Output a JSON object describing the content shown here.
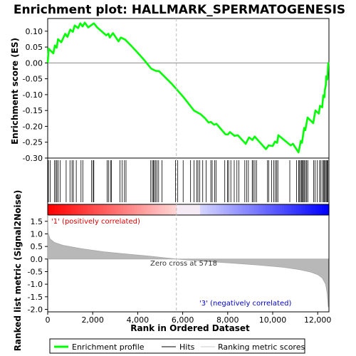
{
  "chart_data": {
    "type": "line",
    "title": "Enrichment plot: HALLMARK_SPERMATOGENESIS",
    "x_label": "Rank in Ordered Dataset",
    "x_range": [
      0,
      12500
    ],
    "x_ticks": [
      0,
      2000,
      4000,
      6000,
      8000,
      10000,
      12000
    ],
    "x_tick_labels": [
      "0",
      "2,000",
      "4,000",
      "6,000",
      "8,000",
      "10,000",
      "12,000"
    ],
    "top_panel": {
      "y_label": "Enrichment score (ES)",
      "y_range": [
        -0.3,
        0.14
      ],
      "y_ticks": [
        0.1,
        0.05,
        0.0,
        -0.05,
        -0.1,
        -0.15,
        -0.2,
        -0.25,
        -0.3
      ],
      "y_tick_labels": [
        "0.10",
        "0.05",
        "0.00",
        "-0.05",
        "-0.10",
        "-0.15",
        "-0.20",
        "-0.25",
        "-0.30"
      ],
      "series_name": "Enrichment profile",
      "color": "#00ff00",
      "points": [
        [
          0,
          0.0
        ],
        [
          40,
          0.045
        ],
        [
          250,
          0.03
        ],
        [
          320,
          0.055
        ],
        [
          400,
          0.048
        ],
        [
          460,
          0.075
        ],
        [
          600,
          0.065
        ],
        [
          780,
          0.092
        ],
        [
          880,
          0.082
        ],
        [
          1000,
          0.105
        ],
        [
          1120,
          0.098
        ],
        [
          1200,
          0.118
        ],
        [
          1350,
          0.11
        ],
        [
          1450,
          0.125
        ],
        [
          1550,
          0.115
        ],
        [
          1650,
          0.127
        ],
        [
          1800,
          0.112
        ],
        [
          2050,
          0.125
        ],
        [
          2200,
          0.112
        ],
        [
          2600,
          0.087
        ],
        [
          2700,
          0.092
        ],
        [
          2760,
          0.08
        ],
        [
          2900,
          0.094
        ],
        [
          3150,
          0.068
        ],
        [
          3250,
          0.08
        ],
        [
          3450,
          0.073
        ],
        [
          3700,
          0.055
        ],
        [
          4000,
          0.032
        ],
        [
          4300,
          0.008
        ],
        [
          4600,
          -0.018
        ],
        [
          4800,
          -0.025
        ],
        [
          4950,
          -0.026
        ],
        [
          5500,
          -0.065
        ],
        [
          6000,
          -0.105
        ],
        [
          6500,
          -0.15
        ],
        [
          6800,
          -0.162
        ],
        [
          7000,
          -0.175
        ],
        [
          7150,
          -0.188
        ],
        [
          7250,
          -0.186
        ],
        [
          7400,
          -0.195
        ],
        [
          7500,
          -0.192
        ],
        [
          7900,
          -0.225
        ],
        [
          8000,
          -0.226
        ],
        [
          8100,
          -0.218
        ],
        [
          8300,
          -0.23
        ],
        [
          8450,
          -0.228
        ],
        [
          8800,
          -0.255
        ],
        [
          8950,
          -0.235
        ],
        [
          9100,
          -0.243
        ],
        [
          9200,
          -0.232
        ],
        [
          9700,
          -0.272
        ],
        [
          9820,
          -0.26
        ],
        [
          10000,
          -0.262
        ],
        [
          10100,
          -0.248
        ],
        [
          10200,
          -0.252
        ],
        [
          10250,
          -0.228
        ],
        [
          10800,
          -0.26
        ],
        [
          10900,
          -0.255
        ],
        [
          11150,
          -0.282
        ],
        [
          11250,
          -0.246
        ],
        [
          11300,
          -0.252
        ],
        [
          11400,
          -0.205
        ],
        [
          11450,
          -0.212
        ],
        [
          11550,
          -0.172
        ],
        [
          11800,
          -0.19
        ],
        [
          11900,
          -0.15
        ],
        [
          12050,
          -0.16
        ],
        [
          12100,
          -0.135
        ],
        [
          12200,
          -0.14
        ],
        [
          12250,
          -0.102
        ],
        [
          12300,
          -0.108
        ],
        [
          12320,
          -0.085
        ],
        [
          12360,
          -0.07
        ],
        [
          12380,
          -0.042
        ],
        [
          12430,
          -0.052
        ],
        [
          12470,
          0.002
        ]
      ]
    },
    "hits": [
      30,
      110,
      300,
      360,
      410,
      470,
      560,
      820,
      990,
      1080,
      1140,
      1270,
      1480,
      1560,
      1950,
      2020,
      2050,
      2640,
      2700,
      2790,
      2830,
      3210,
      3310,
      3410,
      3480,
      4580,
      4650,
      4700,
      4740,
      4800,
      4860,
      4930,
      5080,
      5680,
      5780,
      6020,
      6350,
      6500,
      6620,
      6680,
      6760,
      6890,
      7040,
      7250,
      7310,
      7420,
      7480,
      7870,
      7990,
      8040,
      8140,
      8290,
      8410,
      8500,
      8760,
      8840,
      8920,
      9090,
      9140,
      9210,
      9280,
      9770,
      9820,
      9950,
      10050,
      10120,
      10180,
      10230,
      10760,
      11060,
      11150,
      11190,
      11250,
      11290,
      11330,
      11360,
      11410,
      11460,
      11510,
      11560,
      11820,
      11880,
      11980,
      12080,
      12140,
      12210,
      12260,
      12300,
      12340,
      12380,
      12420,
      12450
    ],
    "heatmap_label_pos": "'1' (positively correlated)",
    "heatmap_label_neg": "'3' (negatively correlated)",
    "bottom_panel": {
      "y_label": "Ranked list metric (Signal2Noise)",
      "y_range": [
        -2.1,
        1.75
      ],
      "y_ticks": [
        1.5,
        1.0,
        0.5,
        0.0,
        -0.5,
        -1.0,
        -1.5,
        -2.0
      ],
      "y_tick_labels": [
        "1.5",
        "1.0",
        "0.5",
        "0.0",
        "-0.5",
        "-1.0",
        "-1.5",
        "-2.0"
      ],
      "metric_points": [
        [
          0,
          1.75
        ],
        [
          20,
          1.05
        ],
        [
          100,
          0.8
        ],
        [
          300,
          0.66
        ],
        [
          700,
          0.54
        ],
        [
          1500,
          0.41
        ],
        [
          2500,
          0.29
        ],
        [
          3500,
          0.2
        ],
        [
          4500,
          0.12
        ],
        [
          5300,
          0.04
        ],
        [
          5718,
          0.0
        ],
        [
          6500,
          -0.06
        ],
        [
          7500,
          -0.12
        ],
        [
          8500,
          -0.18
        ],
        [
          9500,
          -0.25
        ],
        [
          10500,
          -0.33
        ],
        [
          11200,
          -0.42
        ],
        [
          11700,
          -0.52
        ],
        [
          12000,
          -0.62
        ],
        [
          12200,
          -0.75
        ],
        [
          12350,
          -1.0
        ],
        [
          12420,
          -1.35
        ],
        [
          12470,
          -1.92
        ]
      ],
      "zero_cross_label": "Zero cross at 5718",
      "zero_cross": 5718
    },
    "legend": [
      "Enrichment profile",
      "Hits",
      "Ranking metric scores"
    ],
    "legend_placement": "bottom"
  }
}
